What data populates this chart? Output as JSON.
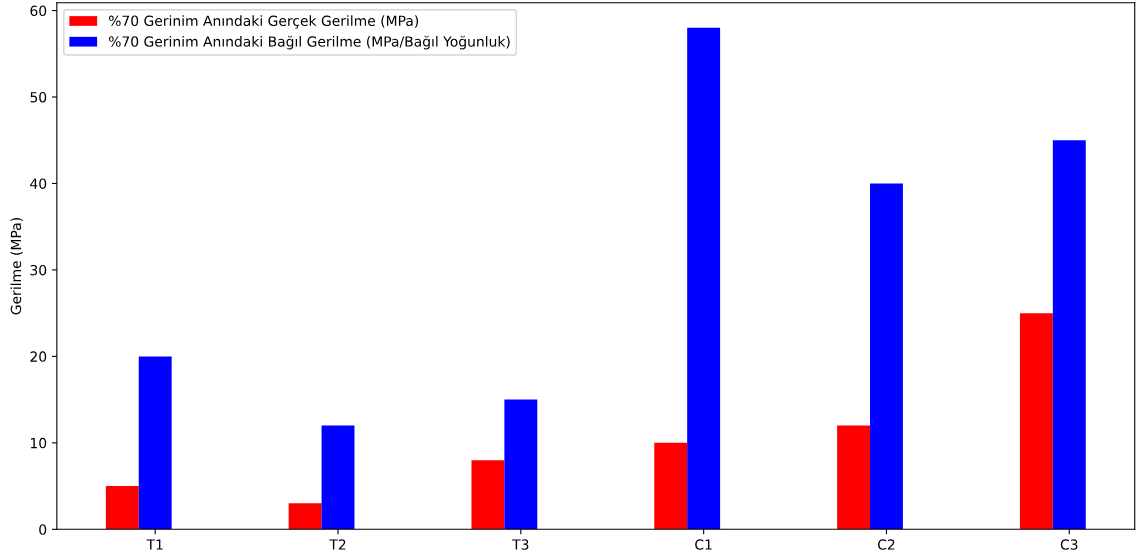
{
  "chart_data": {
    "type": "bar",
    "ylabel": "Gerilme (MPa)",
    "categories": [
      "T1",
      "T2",
      "T3",
      "C1",
      "C2",
      "C3"
    ],
    "series": [
      {
        "name": "%70 Gerinim Anındaki Gerçek Gerilme (MPa)",
        "color": "#ff0000",
        "values": [
          5,
          3,
          8,
          10,
          12,
          25
        ]
      },
      {
        "name": "%70 Gerinim Anındaki Bağıl Gerilme (MPa/Bağıl Yoğunluk)",
        "color": "#0000ff",
        "values": [
          20,
          12,
          15,
          58,
          40,
          45
        ]
      }
    ],
    "ylim": [
      0,
      60.9
    ],
    "yticks": [
      0,
      10,
      20,
      30,
      40,
      50,
      60
    ],
    "grid": false,
    "legend": "top left"
  }
}
